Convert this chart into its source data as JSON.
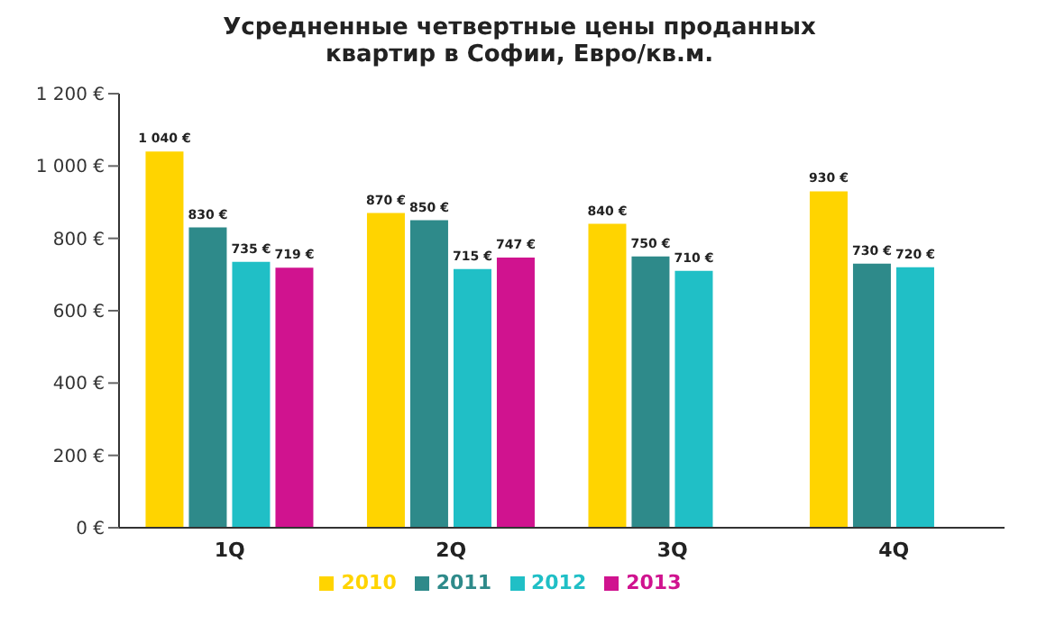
{
  "chart_data": {
    "type": "bar",
    "title": "Усредненные четвертные цены проданных квартир в Софии, Евро/кв.м.",
    "categories": [
      "1Q",
      "2Q",
      "3Q",
      "4Q"
    ],
    "series": [
      {
        "name": "2010",
        "color": "#ffd400",
        "values": [
          1040,
          870,
          840,
          930
        ],
        "value_labels": [
          "1 040 €",
          "870 €",
          "840 €",
          "930 €"
        ]
      },
      {
        "name": "2011",
        "color": "#2e8a8a",
        "values": [
          830,
          850,
          750,
          730
        ],
        "value_labels": [
          "830 €",
          "850 €",
          "750 €",
          "730 €"
        ]
      },
      {
        "name": "2012",
        "color": "#20bfc6",
        "values": [
          735,
          715,
          710,
          720
        ],
        "value_labels": [
          "735 €",
          "715 €",
          "710 €",
          "720 €"
        ]
      },
      {
        "name": "2013",
        "color": "#d0138f",
        "values": [
          719,
          747,
          null,
          null
        ],
        "value_labels": [
          "719 €",
          "747 €",
          null,
          null
        ]
      }
    ],
    "ylim": [
      0,
      1200
    ],
    "yticks": [
      {
        "value": 0,
        "label": "0 €"
      },
      {
        "value": 200,
        "label": "200 €"
      },
      {
        "value": 400,
        "label": "400 €"
      },
      {
        "value": 600,
        "label": "600 €"
      },
      {
        "value": 800,
        "label": "800 €"
      },
      {
        "value": 1000,
        "label": "1 000 €"
      },
      {
        "value": 1200,
        "label": "1 200 €"
      }
    ],
    "grid": false,
    "legend": "bottom"
  }
}
